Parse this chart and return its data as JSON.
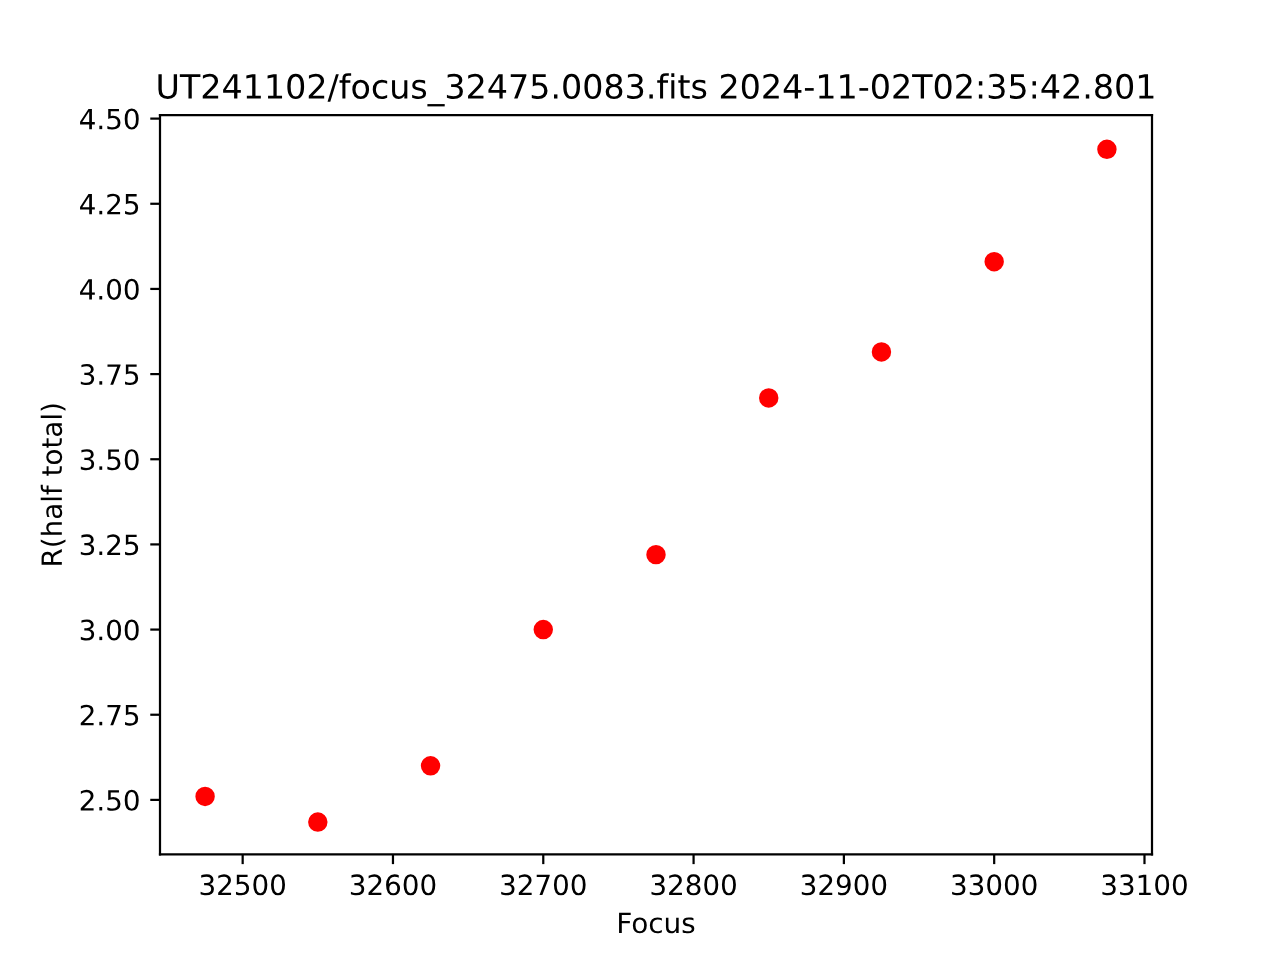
{
  "chart_data": {
    "type": "scatter",
    "title": "UT241102/focus_32475.0083.fits 2024-11-02T02:35:42.801",
    "xlabel": "Focus",
    "ylabel": "R(half total)",
    "x": [
      32475,
      32550,
      32625,
      32700,
      32775,
      32850,
      32925,
      33000,
      33075
    ],
    "series": [
      {
        "color": "#ff0000",
        "values": [
          2.51,
          2.435,
          2.6,
          3.0,
          3.22,
          3.68,
          3.815,
          4.08,
          4.41
        ]
      }
    ],
    "marker": "circle",
    "xlim": [
      32445,
      33105
    ],
    "xticks": [
      32500,
      32600,
      32700,
      32800,
      32900,
      33000,
      33100
    ],
    "ylim": [
      2.34,
      4.51
    ],
    "yticks": [
      {
        "value": 2.5,
        "label": "2.50"
      },
      {
        "value": 2.75,
        "label": "2.75"
      },
      {
        "value": 3.0,
        "label": "3.00"
      },
      {
        "value": 3.25,
        "label": "3.25"
      },
      {
        "value": 3.5,
        "label": "3.50"
      },
      {
        "value": 3.75,
        "label": "3.75"
      },
      {
        "value": 4.0,
        "label": "4.00"
      },
      {
        "value": 4.25,
        "label": "4.25"
      },
      {
        "value": 4.5,
        "label": "4.50"
      }
    ],
    "grid": false,
    "legend": false
  }
}
